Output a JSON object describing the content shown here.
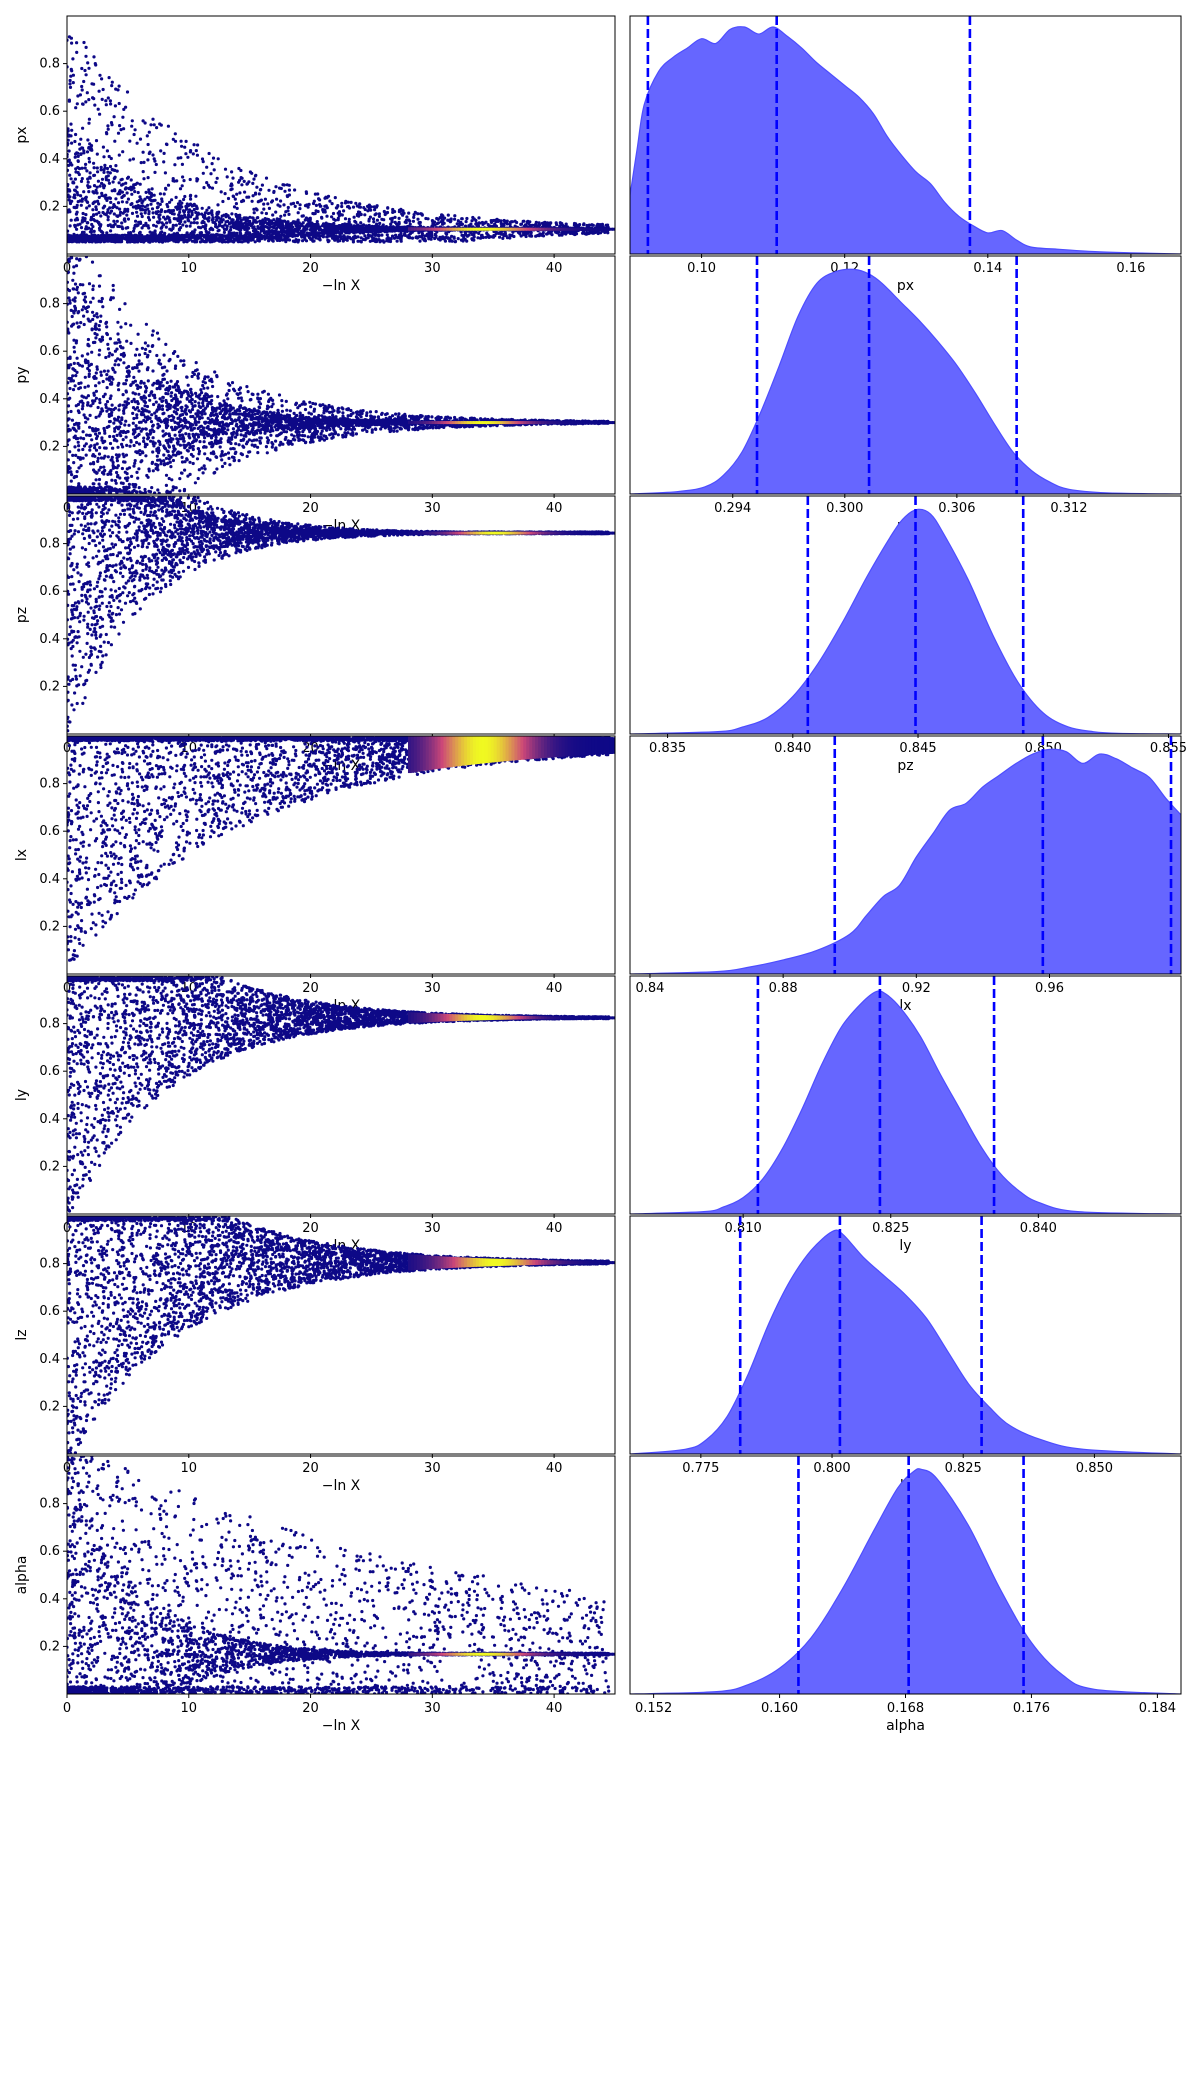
{
  "figure": {
    "colormap_low": "#0d0887",
    "colormap_mid": "#cc4778",
    "colormap_high": "#f0f921",
    "posterior_fill": "#6666ff",
    "posterior_edge": "#4d4dff",
    "quantile_line": "#0000ff"
  },
  "chart_data": [
    {
      "type": "scatter",
      "param": "px",
      "xlabel": "−ln X",
      "ylabel": "px",
      "xlim": [
        0,
        45
      ],
      "ylim": [
        0,
        1
      ],
      "xticks": [
        0,
        10,
        20,
        30,
        40
      ],
      "yticks": [
        0.2,
        0.4,
        0.6,
        0.8
      ],
      "ytick_labels": [
        "0.2",
        "0.4",
        "0.6",
        "0.8"
      ],
      "converged_value": 0.105,
      "spread_start": 0.45,
      "tau": 7.0,
      "upper_edge_decay": 3.0,
      "floor": 0.05,
      "peak_density_x": 34,
      "peak_density_width": 4.5
    },
    {
      "type": "area",
      "param": "px",
      "xlabel": "px",
      "xlim": [
        0.09,
        0.167
      ],
      "xticks": [
        0.1,
        0.12,
        0.14,
        0.16
      ],
      "xtick_labels": [
        "0.10",
        "0.12",
        "0.14",
        "0.16"
      ],
      "x": [
        0.09,
        0.091,
        0.092,
        0.094,
        0.096,
        0.098,
        0.1,
        0.102,
        0.104,
        0.106,
        0.108,
        0.11,
        0.112,
        0.114,
        0.116,
        0.118,
        0.12,
        0.122,
        0.124,
        0.126,
        0.128,
        0.13,
        0.132,
        0.134,
        0.136,
        0.138,
        0.14,
        0.142,
        0.144,
        0.146,
        0.15,
        0.155,
        0.16,
        0.167
      ],
      "density": [
        0.25,
        0.45,
        0.64,
        0.78,
        0.84,
        0.88,
        0.92,
        0.9,
        0.96,
        0.97,
        0.94,
        0.97,
        0.93,
        0.88,
        0.82,
        0.77,
        0.72,
        0.67,
        0.6,
        0.5,
        0.42,
        0.35,
        0.3,
        0.22,
        0.16,
        0.12,
        0.09,
        0.1,
        0.06,
        0.03,
        0.02,
        0.01,
        0.005,
        0.0
      ],
      "quantiles": [
        0.0925,
        0.1105,
        0.1375
      ]
    },
    {
      "type": "scatter",
      "param": "py",
      "xlabel": "−ln X",
      "ylabel": "py",
      "xlim": [
        0,
        45
      ],
      "ylim": [
        0,
        1
      ],
      "xticks": [
        0,
        10,
        20,
        30,
        40
      ],
      "yticks": [
        0.2,
        0.4,
        0.6,
        0.8
      ],
      "ytick_labels": [
        "0.2",
        "0.4",
        "0.6",
        "0.8"
      ],
      "converged_value": 0.301,
      "spread_start": 0.7,
      "tau": 6.0,
      "upper_edge_decay": 2.5,
      "floor": 0.0,
      "peak_density_x": 34,
      "peak_density_width": 3.5
    },
    {
      "type": "area",
      "param": "py",
      "xlabel": "py",
      "xlim": [
        0.2885,
        0.318
      ],
      "xticks": [
        0.294,
        0.3,
        0.306,
        0.312
      ],
      "xtick_labels": [
        "0.294",
        "0.300",
        "0.306",
        "0.312"
      ],
      "x": [
        0.2885,
        0.291,
        0.2925,
        0.2935,
        0.2945,
        0.2955,
        0.2965,
        0.2975,
        0.2985,
        0.2995,
        0.3005,
        0.3013,
        0.302,
        0.303,
        0.304,
        0.305,
        0.306,
        0.307,
        0.308,
        0.309,
        0.31,
        0.311,
        0.312,
        0.314,
        0.318
      ],
      "density": [
        0.0,
        0.01,
        0.03,
        0.08,
        0.18,
        0.35,
        0.55,
        0.76,
        0.9,
        0.95,
        0.96,
        0.94,
        0.9,
        0.82,
        0.74,
        0.65,
        0.55,
        0.43,
        0.3,
        0.18,
        0.1,
        0.05,
        0.02,
        0.005,
        0.0
      ],
      "quantiles": [
        0.2953,
        0.3013,
        0.3092
      ]
    },
    {
      "type": "scatter",
      "param": "pz",
      "xlabel": "−ln X",
      "ylabel": "pz",
      "xlim": [
        0,
        45
      ],
      "ylim": [
        0,
        1
      ],
      "xticks": [
        0,
        10,
        20,
        30,
        40
      ],
      "yticks": [
        0.2,
        0.4,
        0.6,
        0.8
      ],
      "ytick_labels": [
        "0.2",
        "0.4",
        "0.6",
        "0.8"
      ],
      "converged_value": 0.845,
      "spread_start": 0.85,
      "tau": 5.0,
      "upper_edge_decay": 2.0,
      "floor": 0.0,
      "peak_density_x": 35,
      "peak_density_width": 3.5
    },
    {
      "type": "area",
      "param": "pz",
      "xlabel": "pz",
      "xlim": [
        0.8335,
        0.8555
      ],
      "xticks": [
        0.835,
        0.84,
        0.845,
        0.85,
        0.855
      ],
      "xtick_labels": [
        "0.835",
        "0.840",
        "0.845",
        "0.850",
        "0.855"
      ],
      "x": [
        0.8335,
        0.837,
        0.838,
        0.839,
        0.84,
        0.841,
        0.842,
        0.843,
        0.844,
        0.8445,
        0.845,
        0.8455,
        0.846,
        0.847,
        0.848,
        0.849,
        0.85,
        0.851,
        0.852,
        0.853,
        0.8555
      ],
      "density": [
        0.0,
        0.01,
        0.03,
        0.07,
        0.16,
        0.3,
        0.48,
        0.68,
        0.86,
        0.93,
        0.96,
        0.94,
        0.86,
        0.66,
        0.42,
        0.22,
        0.09,
        0.03,
        0.01,
        0.003,
        0.0
      ],
      "quantiles": [
        0.8406,
        0.8449,
        0.8492
      ]
    },
    {
      "type": "scatter",
      "param": "lx",
      "xlabel": "−ln X",
      "ylabel": "lx",
      "xlim": [
        0,
        45
      ],
      "ylim": [
        0,
        1
      ],
      "xticks": [
        0,
        10,
        20,
        30,
        40
      ],
      "yticks": [
        0.2,
        0.4,
        0.6,
        0.8
      ],
      "ytick_labels": [
        "0.2",
        "0.4",
        "0.6",
        "0.8"
      ],
      "converged_value": 0.96,
      "spread_start": 0.95,
      "tau": 14.0,
      "upper_edge_decay": 1.0,
      "floor": 0.0,
      "peak_density_x": 34,
      "peak_density_width": 4.0
    },
    {
      "type": "area",
      "param": "lx",
      "xlabel": "lx",
      "xlim": [
        0.834,
        0.9995
      ],
      "xticks": [
        0.84,
        0.88,
        0.92,
        0.96
      ],
      "xtick_labels": [
        "0.84",
        "0.88",
        "0.92",
        "0.96"
      ],
      "x": [
        0.834,
        0.86,
        0.87,
        0.88,
        0.89,
        0.9,
        0.905,
        0.91,
        0.915,
        0.92,
        0.925,
        0.93,
        0.935,
        0.94,
        0.945,
        0.95,
        0.955,
        0.96,
        0.965,
        0.97,
        0.975,
        0.98,
        0.985,
        0.99,
        0.995,
        0.9995
      ],
      "density": [
        0.0,
        0.01,
        0.03,
        0.06,
        0.1,
        0.17,
        0.25,
        0.33,
        0.38,
        0.5,
        0.6,
        0.7,
        0.73,
        0.8,
        0.85,
        0.9,
        0.94,
        0.96,
        0.95,
        0.9,
        0.94,
        0.92,
        0.88,
        0.84,
        0.75,
        0.68
      ],
      "quantiles": [
        0.8955,
        0.958,
        0.9965
      ]
    },
    {
      "type": "scatter",
      "param": "ly",
      "xlabel": "−ln X",
      "ylabel": "ly",
      "xlim": [
        0,
        45
      ],
      "ylim": [
        0,
        1
      ],
      "xticks": [
        0,
        10,
        20,
        30,
        40
      ],
      "yticks": [
        0.2,
        0.4,
        0.6,
        0.8
      ],
      "ytick_labels": [
        "0.2",
        "0.4",
        "0.6",
        "0.8"
      ],
      "converged_value": 0.825,
      "spread_start": 0.85,
      "tau": 8.0,
      "upper_edge_decay": 1.6,
      "floor": 0.0,
      "peak_density_x": 34,
      "peak_density_width": 3.5
    },
    {
      "type": "area",
      "param": "ly",
      "xlabel": "ly",
      "xlim": [
        0.7985,
        0.8545
      ],
      "xticks": [
        0.81,
        0.825,
        0.84
      ],
      "xtick_labels": [
        "0.810",
        "0.825",
        "0.840"
      ],
      "x": [
        0.7985,
        0.806,
        0.808,
        0.81,
        0.812,
        0.814,
        0.816,
        0.818,
        0.82,
        0.822,
        0.8235,
        0.8245,
        0.826,
        0.828,
        0.83,
        0.832,
        0.834,
        0.836,
        0.838,
        0.84,
        0.844,
        0.8545
      ],
      "density": [
        0.0,
        0.01,
        0.03,
        0.07,
        0.15,
        0.28,
        0.45,
        0.64,
        0.8,
        0.9,
        0.95,
        0.94,
        0.88,
        0.76,
        0.6,
        0.45,
        0.3,
        0.18,
        0.1,
        0.05,
        0.01,
        0.0
      ],
      "quantiles": [
        0.8115,
        0.8239,
        0.8355
      ]
    },
    {
      "type": "scatter",
      "param": "lz",
      "xlabel": "−ln X",
      "ylabel": "lz",
      "xlim": [
        0,
        45
      ],
      "ylim": [
        0,
        1
      ],
      "xticks": [
        0,
        10,
        20,
        30,
        40
      ],
      "yticks": [
        0.2,
        0.4,
        0.6,
        0.8
      ],
      "ytick_labels": [
        "0.2",
        "0.4",
        "0.6",
        "0.8"
      ],
      "converged_value": 0.805,
      "spread_start": 0.85,
      "tau": 9.0,
      "upper_edge_decay": 1.4,
      "floor": 0.0,
      "peak_density_x": 35,
      "peak_density_width": 4.0
    },
    {
      "type": "area",
      "param": "lz",
      "xlabel": "lz",
      "xlim": [
        0.7615,
        0.8665
      ],
      "xticks": [
        0.775,
        0.8,
        0.825,
        0.85
      ],
      "xtick_labels": [
        "0.775",
        "0.800",
        "0.825",
        "0.850"
      ],
      "x": [
        0.7615,
        0.772,
        0.776,
        0.78,
        0.784,
        0.788,
        0.792,
        0.796,
        0.8,
        0.802,
        0.806,
        0.81,
        0.814,
        0.818,
        0.822,
        0.826,
        0.83,
        0.834,
        0.84,
        0.848,
        0.8665
      ],
      "density": [
        0.0,
        0.02,
        0.06,
        0.16,
        0.34,
        0.56,
        0.74,
        0.87,
        0.95,
        0.94,
        0.84,
        0.76,
        0.68,
        0.58,
        0.44,
        0.3,
        0.2,
        0.12,
        0.06,
        0.02,
        0.0
      ],
      "quantiles": [
        0.7825,
        0.8015,
        0.8285
      ]
    },
    {
      "type": "scatter",
      "param": "alpha",
      "xlabel": "−ln X",
      "ylabel": "alpha",
      "xlim": [
        0,
        45
      ],
      "ylim": [
        0,
        1
      ],
      "xticks": [
        0,
        10,
        20,
        30,
        40
      ],
      "yticks": [
        0.2,
        0.4,
        0.6,
        0.8
      ],
      "ytick_labels": [
        "0.2",
        "0.4",
        "0.6",
        "0.8"
      ],
      "converged_value": 0.168,
      "spread_start": 0.85,
      "tau": 5.5,
      "upper_edge_decay": 12.0,
      "floor": 0.0,
      "peak_density_x": 34,
      "peak_density_width": 4.0
    },
    {
      "type": "area",
      "param": "alpha",
      "xlabel": "alpha",
      "xlim": [
        0.1505,
        0.1855
      ],
      "xticks": [
        0.152,
        0.16,
        0.168,
        0.176,
        0.184
      ],
      "xtick_labels": [
        "0.152",
        "0.160",
        "0.168",
        "0.176",
        "0.184"
      ],
      "x": [
        0.1505,
        0.156,
        0.158,
        0.16,
        0.162,
        0.164,
        0.166,
        0.1675,
        0.1685,
        0.169,
        0.17,
        0.172,
        0.174,
        0.176,
        0.178,
        0.18,
        0.1855
      ],
      "density": [
        0.0,
        0.01,
        0.04,
        0.11,
        0.24,
        0.45,
        0.7,
        0.88,
        0.95,
        0.96,
        0.92,
        0.72,
        0.45,
        0.22,
        0.08,
        0.02,
        0.0
      ],
      "quantiles": [
        0.1612,
        0.1682,
        0.1755
      ]
    }
  ]
}
